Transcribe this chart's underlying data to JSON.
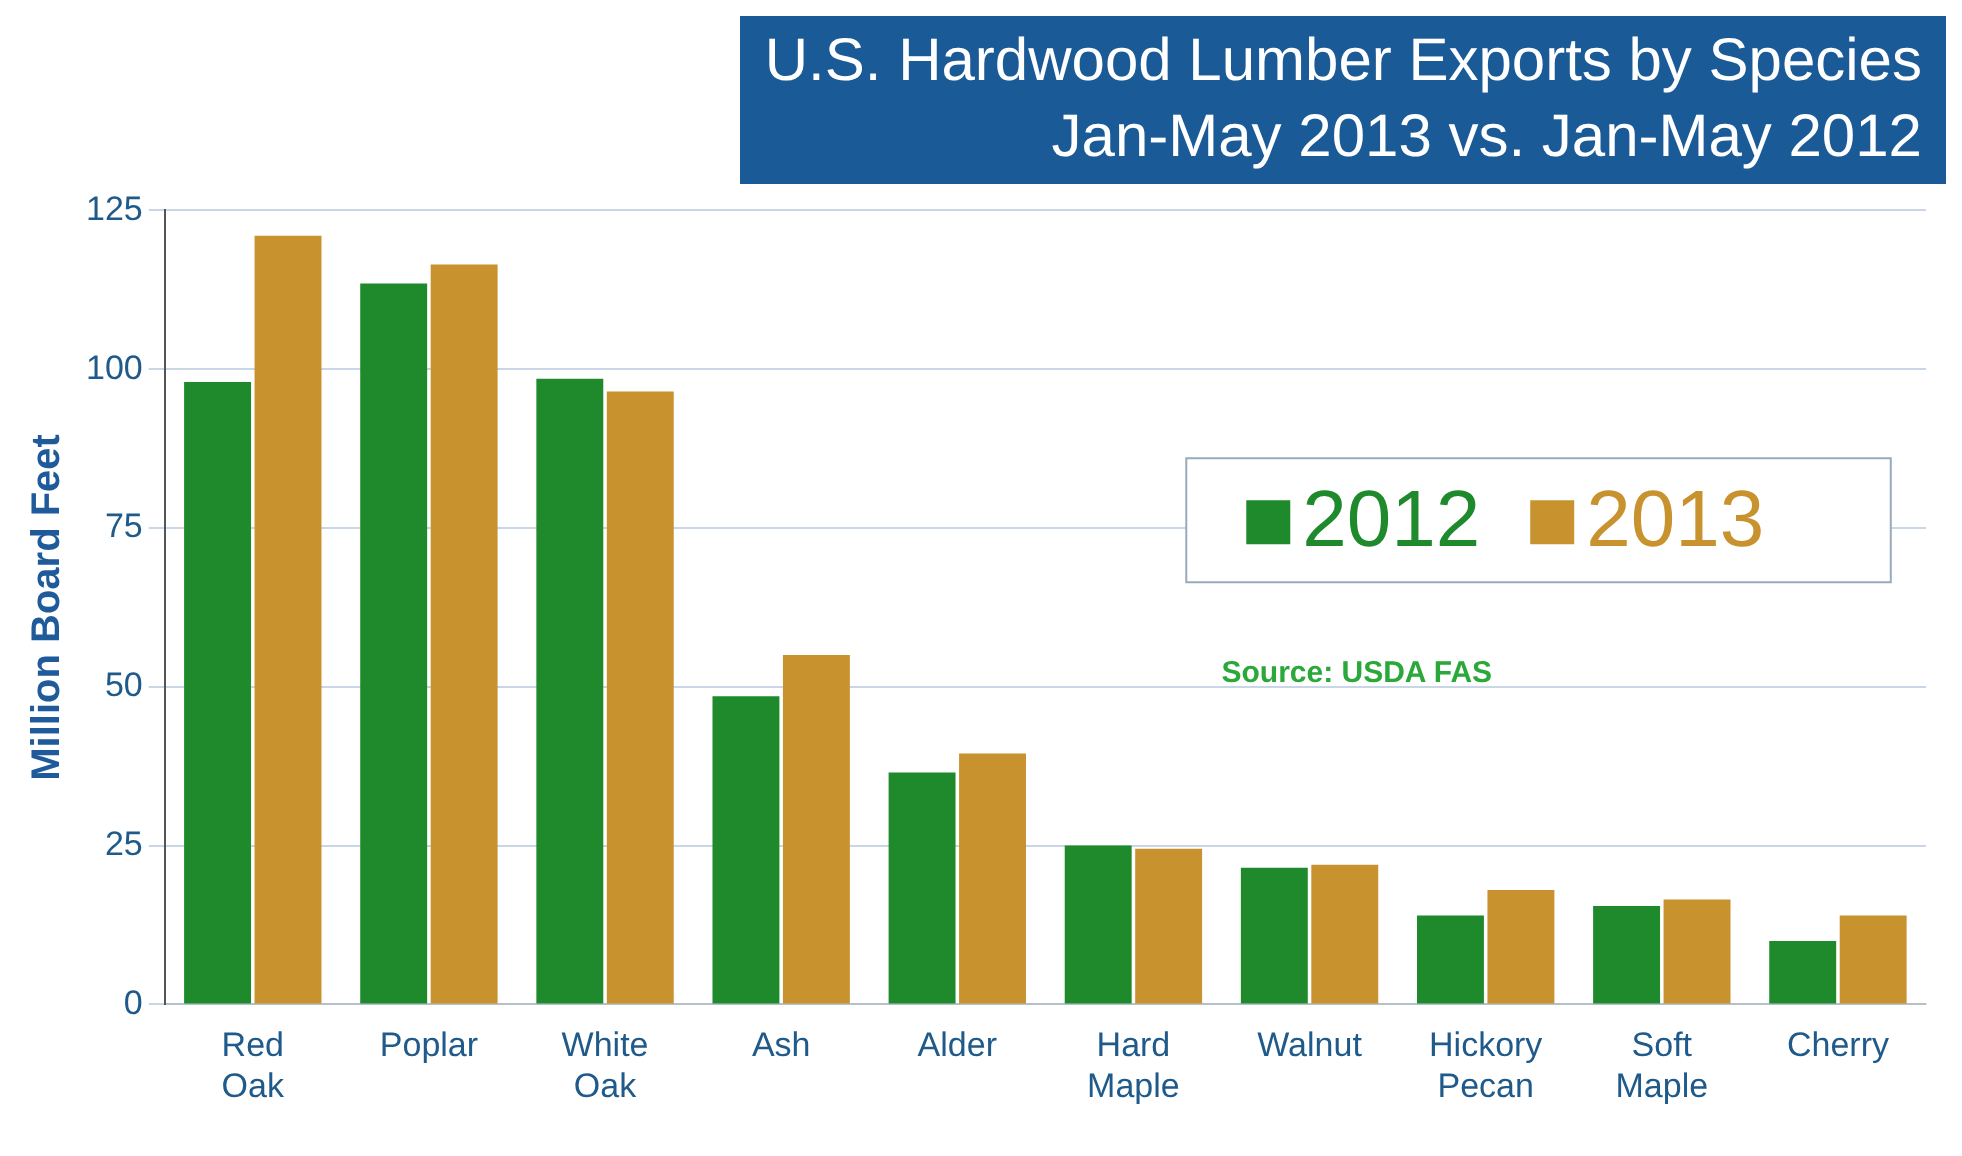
{
  "chart_data": {
    "type": "bar",
    "title": "U.S. Hardwood Lumber Exports by Species",
    "subtitle": "Jan-May 2013 vs. Jan-May 2012",
    "ylabel": "Million Board Feet",
    "categories": [
      "Red Oak",
      "Poplar",
      "White Oak",
      "Ash",
      "Alder",
      "Hard Maple",
      "Walnut",
      "Hickory Pecan",
      "Soft Maple",
      "Cherry"
    ],
    "series": [
      {
        "name": "2012",
        "color": "#1e8a2c",
        "values": [
          98,
          113.5,
          98.5,
          48.5,
          36.5,
          25,
          21.5,
          14,
          15.5,
          10
        ]
      },
      {
        "name": "2013",
        "color": "#c8922e",
        "values": [
          121,
          116.5,
          96.5,
          55,
          39.5,
          24.5,
          22,
          18,
          16.5,
          14
        ]
      }
    ],
    "ylim": [
      0,
      125
    ],
    "yticks": [
      0,
      25,
      50,
      75,
      100,
      125
    ],
    "grid": "y",
    "legend": "right",
    "annotations": [
      "Source: USDA FAS"
    ]
  }
}
